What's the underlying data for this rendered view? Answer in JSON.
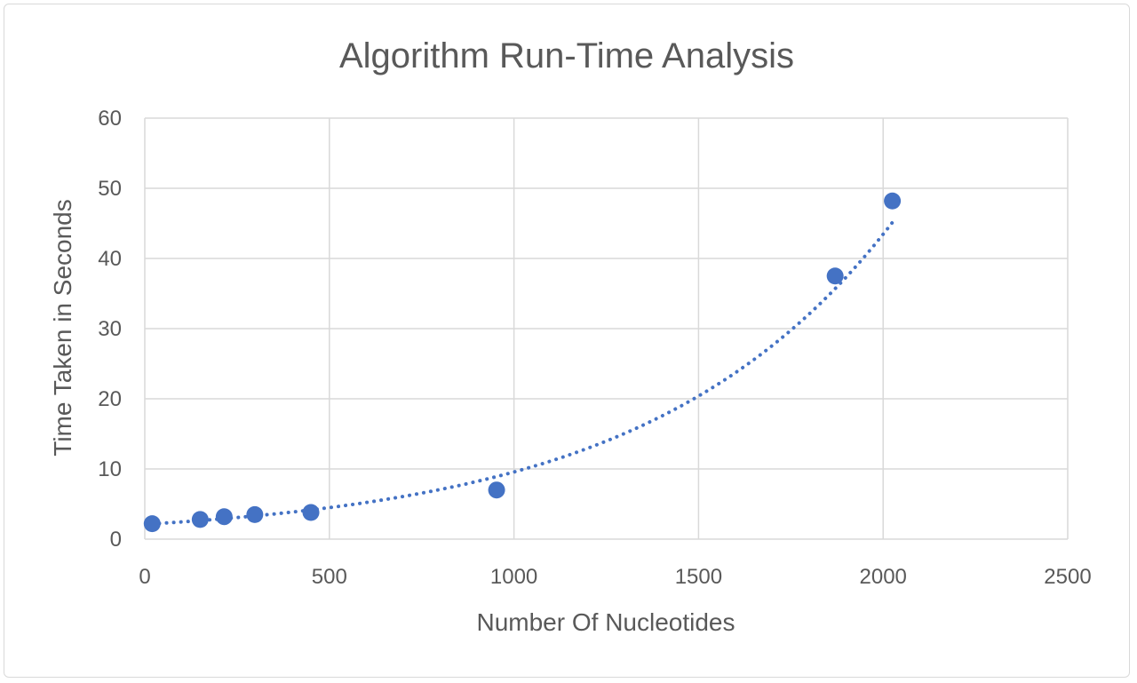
{
  "chart_data": {
    "type": "scatter",
    "title": "Algorithm Run-Time Analysis",
    "xlabel": "Number Of Nucleotides",
    "ylabel": "Time Taken in Seconds",
    "xlim": [
      0,
      2500
    ],
    "ylim": [
      0,
      60
    ],
    "x_ticks": [
      "0",
      "500",
      "1000",
      "1500",
      "2000",
      "2500"
    ],
    "y_ticks": [
      "0",
      "10",
      "20",
      "30",
      "40",
      "50",
      "60"
    ],
    "grid": true,
    "legend": "none",
    "series": [
      {
        "color": "#4472c4",
        "x": [
          20,
          150,
          215,
          298,
          450,
          953,
          1870,
          2025
        ],
        "y": [
          2.2,
          2.8,
          3.2,
          3.5,
          3.8,
          7.0,
          37.5,
          48.2
        ],
        "trendline": "exponential"
      }
    ]
  }
}
